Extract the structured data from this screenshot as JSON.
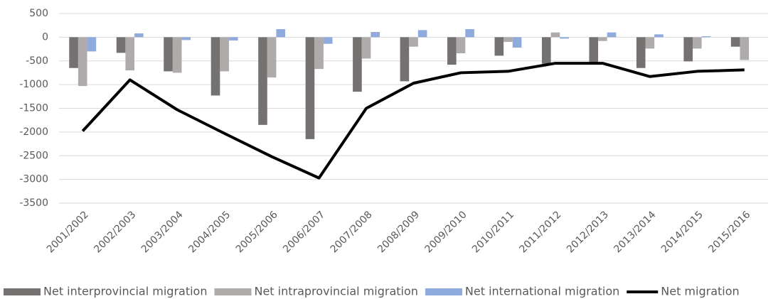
{
  "chart_data": {
    "type": "bar",
    "categories": [
      "2001/2002",
      "2002/2003",
      "2003/2004",
      "2004/2005",
      "2005/2006",
      "2006/2007",
      "2007/2008",
      "2008/2009",
      "2009/2010",
      "2010/2011",
      "2011/2012",
      "2012/2013",
      "2013/2014",
      "2014/2015",
      "2015/2016"
    ],
    "series": [
      {
        "name": "Net interprovincial migration",
        "color": "#767171",
        "values": [
          -650,
          -330,
          -720,
          -1230,
          -1850,
          -2150,
          -1150,
          -930,
          -580,
          -390,
          -560,
          -530,
          -650,
          -510,
          -200
        ]
      },
      {
        "name": "Net intraprovincial migration",
        "color": "#afabab",
        "values": [
          -1030,
          -700,
          -750,
          -720,
          -850,
          -670,
          -450,
          -200,
          -340,
          -100,
          100,
          -80,
          -240,
          -240,
          -480
        ]
      },
      {
        "name": "Net international migration",
        "color": "#8faadc",
        "values": [
          -300,
          80,
          -60,
          -70,
          170,
          -140,
          110,
          150,
          170,
          -220,
          -30,
          100,
          60,
          20,
          0
        ]
      },
      {
        "name": "Net migration",
        "color": "#000000",
        "type": "line",
        "values": [
          -1980,
          -900,
          -1530,
          -2030,
          -2520,
          -2970,
          -1500,
          -970,
          -750,
          -720,
          -550,
          -550,
          -830,
          -720,
          -690
        ]
      }
    ],
    "ylim": [
      -3500,
      500
    ],
    "yticks": [
      -3500,
      -3000,
      -2500,
      -2000,
      -1500,
      -1000,
      -500,
      0,
      500
    ],
    "grid": true,
    "legend": "bottom"
  }
}
